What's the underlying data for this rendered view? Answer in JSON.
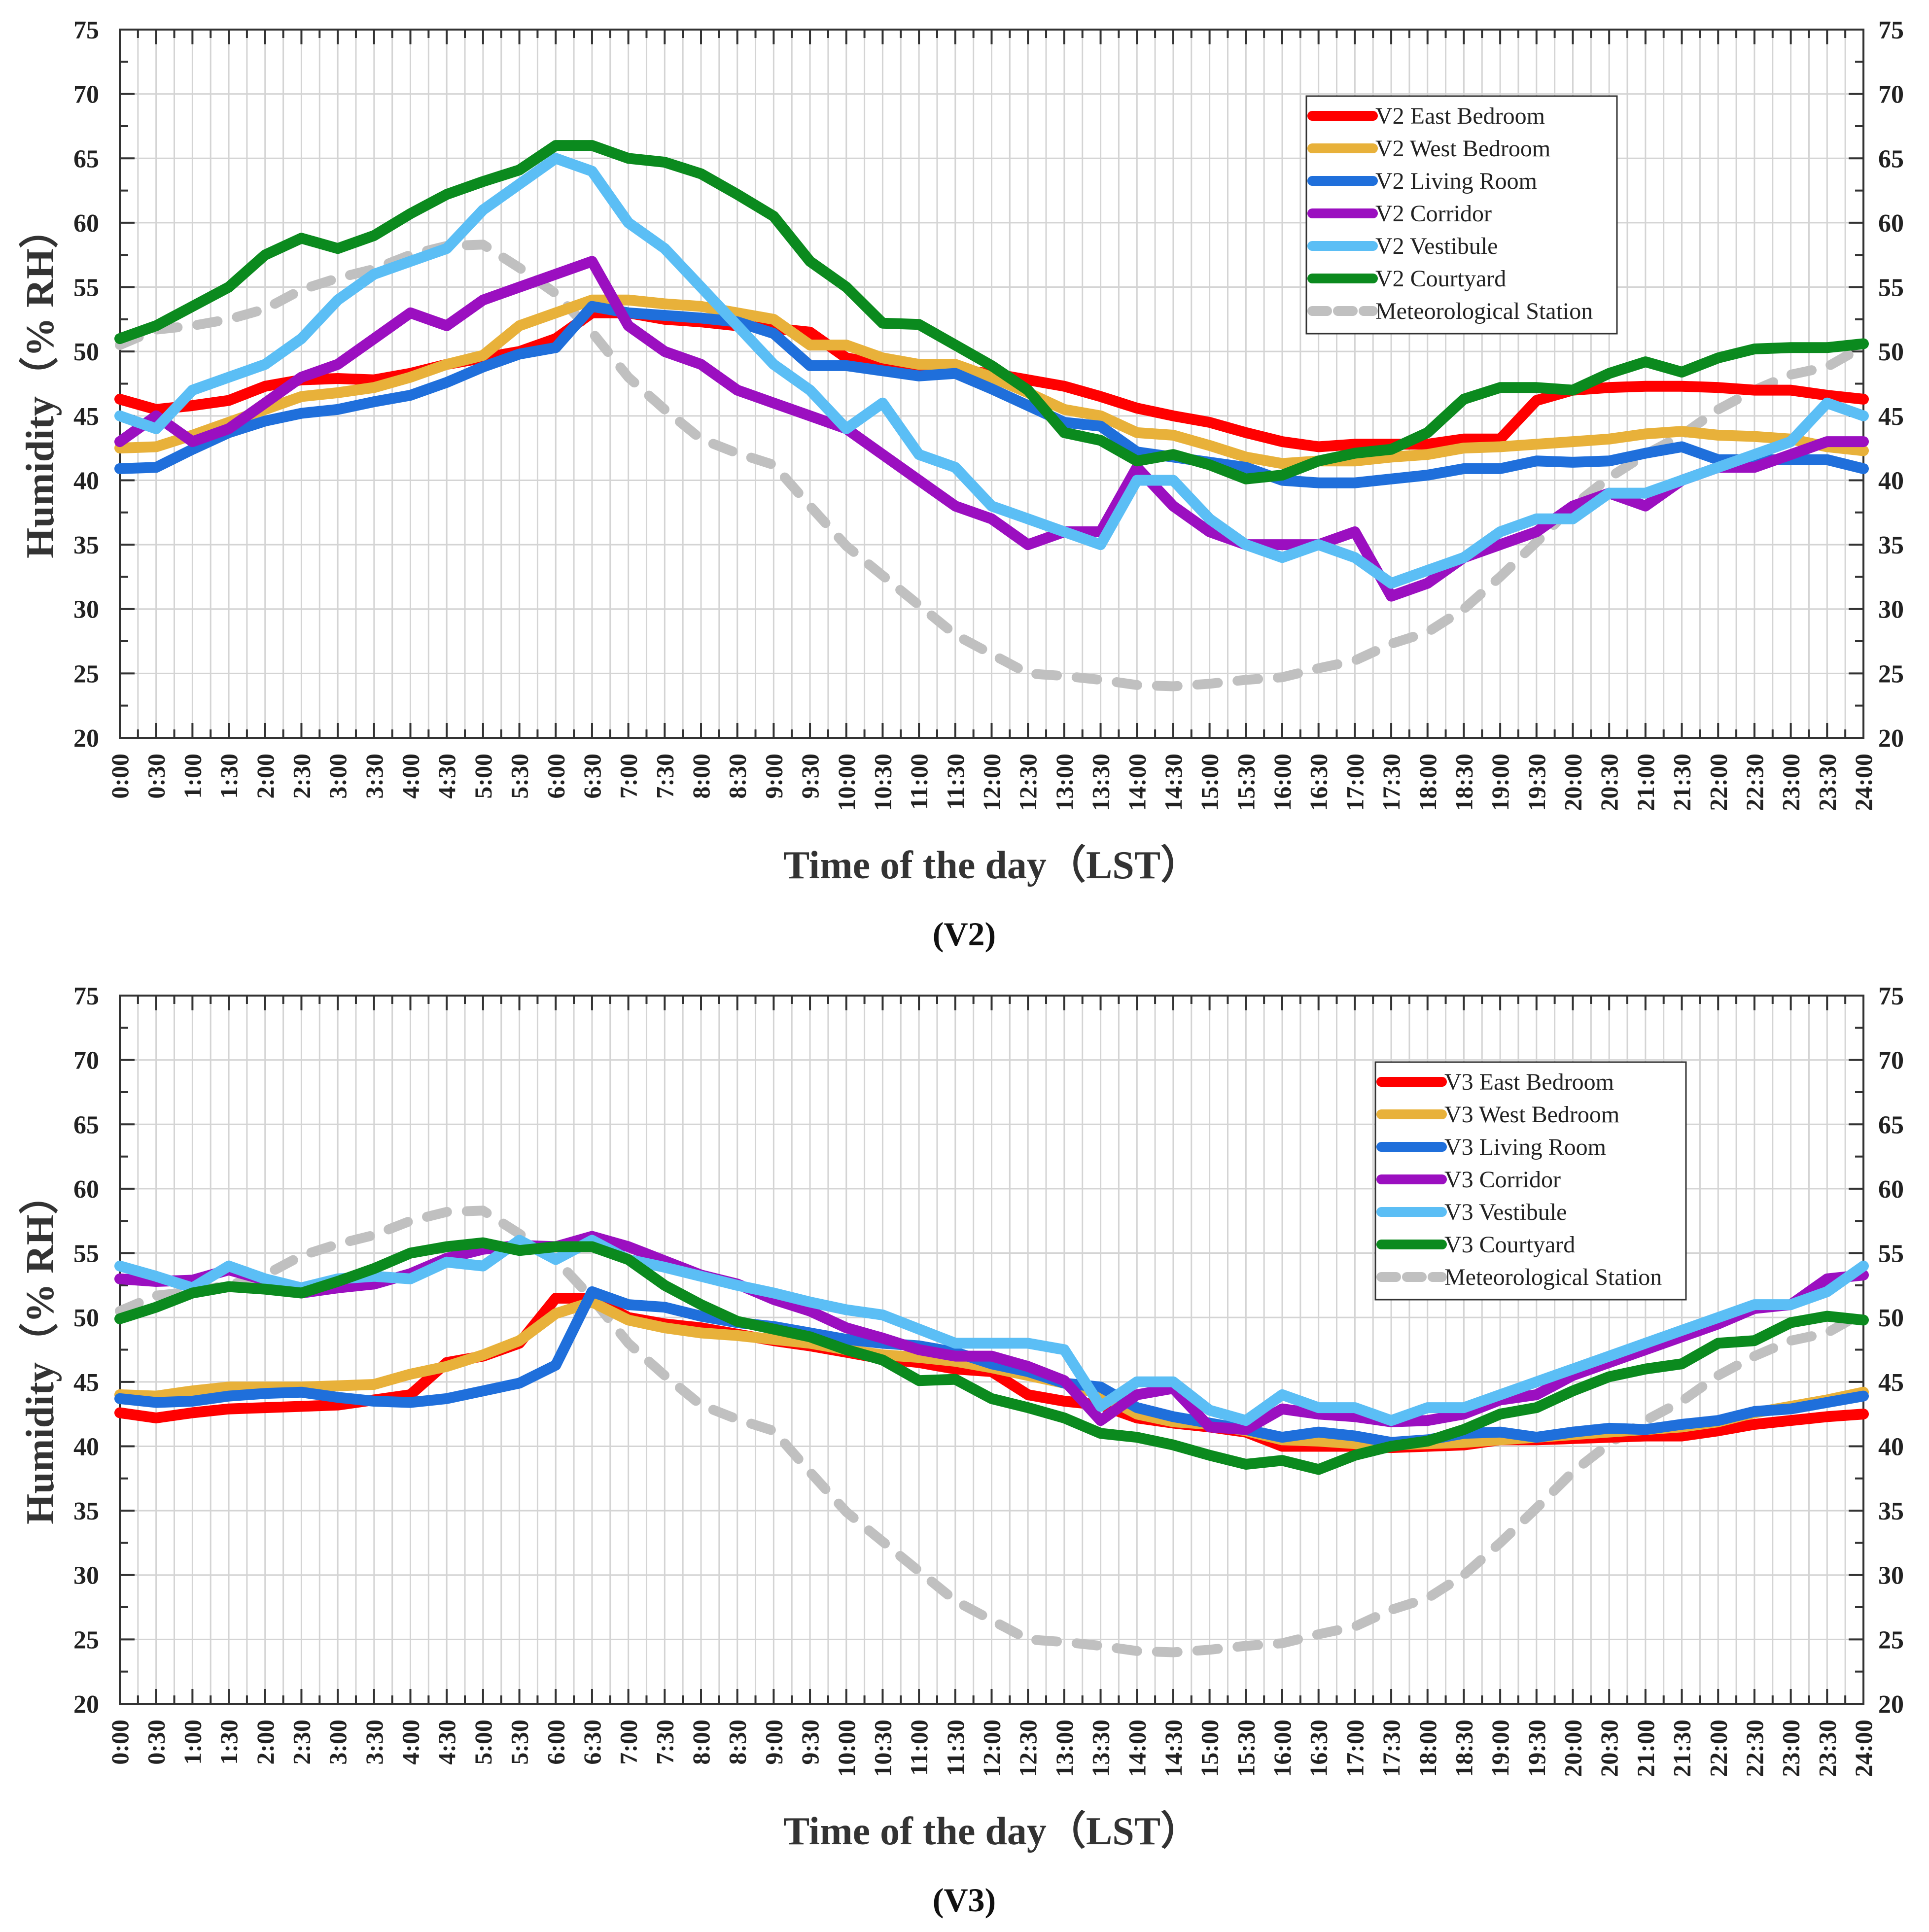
{
  "chart_data": [
    {
      "type": "line",
      "panel_label": "(V2)",
      "xlabel": "Time of the day（LST）",
      "ylabel": "Humidity（% RH）",
      "ylim": [
        20,
        75
      ],
      "yticks": [
        20,
        25,
        30,
        35,
        40,
        45,
        50,
        55,
        60,
        65,
        70,
        75
      ],
      "grid": true,
      "legend_position": "top-right",
      "x": [
        "0:00",
        "0:30",
        "1:00",
        "1:30",
        "2:00",
        "2:30",
        "3:00",
        "3:30",
        "4:00",
        "4:30",
        "5:00",
        "5:30",
        "6:00",
        "6:30",
        "7:00",
        "7:30",
        "8:00",
        "8:30",
        "9:00",
        "9:30",
        "10:00",
        "10:30",
        "11:00",
        "11:30",
        "12:00",
        "12:30",
        "13:00",
        "13:30",
        "14:00",
        "14:30",
        "15:00",
        "15:30",
        "16:00",
        "16:30",
        "17:00",
        "17:30",
        "18:00",
        "18:30",
        "19:00",
        "19:30",
        "20:00",
        "20:30",
        "21:00",
        "21:30",
        "22:00",
        "22:30",
        "23:00",
        "23:30",
        "24:00"
      ],
      "series": [
        {
          "name": "V2 East Bedroom",
          "color": "#ff0000",
          "dashed": false,
          "values": [
            46.3,
            45.5,
            45.8,
            46.2,
            47.3,
            47.8,
            47.9,
            47.8,
            48.3,
            49,
            49.5,
            50,
            51,
            53,
            53,
            52.5,
            52.3,
            52,
            51.8,
            51.5,
            49.5,
            49,
            48.7,
            48.5,
            48.3,
            47.8,
            47.3,
            46.5,
            45.6,
            45,
            44.5,
            43.7,
            43,
            42.6,
            42.8,
            42.8,
            42.8,
            43.2,
            43.2,
            46.2,
            47,
            47.2,
            47.3,
            47.3,
            47.2,
            47,
            47,
            46.6,
            46.3
          ]
        },
        {
          "name": "V2 West Bedroom",
          "color": "#e8b13a",
          "dashed": false,
          "values": [
            42.5,
            42.6,
            43.5,
            44.5,
            45.5,
            46.5,
            46.8,
            47.2,
            48,
            49,
            49.7,
            52,
            53,
            54,
            54,
            53.7,
            53.5,
            53,
            52.5,
            50.5,
            50.5,
            49.5,
            49,
            49,
            48,
            46.8,
            45.5,
            45,
            43.7,
            43.5,
            42.7,
            41.8,
            41.3,
            41.5,
            41.5,
            41.8,
            42,
            42.5,
            42.6,
            42.8,
            43,
            43.2,
            43.6,
            43.8,
            43.5,
            43.4,
            43.2,
            42.6,
            42.3
          ]
        },
        {
          "name": "V2 Living Room",
          "color": "#1f6fdb",
          "dashed": false,
          "values": [
            40.9,
            41,
            42.4,
            43.7,
            44.6,
            45.2,
            45.5,
            46.1,
            46.6,
            47.6,
            48.8,
            49.8,
            50.3,
            53.5,
            53,
            52.8,
            52.6,
            52.3,
            51.4,
            48.9,
            48.9,
            48.5,
            48.1,
            48.3,
            47.1,
            45.8,
            44.5,
            44.2,
            42.2,
            41.8,
            41.4,
            41,
            40,
            39.8,
            39.8,
            40.1,
            40.4,
            40.9,
            40.9,
            41.5,
            41.4,
            41.5,
            42.1,
            42.6,
            41.6,
            41.6,
            41.6,
            41.6,
            40.9
          ]
        },
        {
          "name": "V2  Corridor",
          "color": "#9b0fc0",
          "dashed": false,
          "values": [
            43,
            45,
            43,
            44,
            46,
            48,
            49,
            51,
            53,
            52,
            54,
            55,
            56,
            57,
            52,
            50,
            49,
            47,
            46,
            45,
            44,
            42,
            40,
            38,
            37,
            35,
            36,
            36,
            41,
            38,
            36,
            35,
            35,
            35,
            36,
            31,
            32,
            34,
            35,
            36,
            38,
            39,
            38,
            40,
            41,
            41,
            42,
            43,
            43
          ]
        },
        {
          "name": "V2 Vestibule",
          "color": "#5bbef5",
          "dashed": false,
          "values": [
            45,
            44,
            47,
            48,
            49,
            51,
            54,
            56,
            57,
            58,
            61,
            63,
            65,
            64,
            60,
            58,
            55,
            52,
            49,
            47,
            44,
            46,
            42,
            41,
            38,
            37,
            36,
            35,
            40,
            40,
            37,
            35,
            34,
            35,
            34,
            32,
            33,
            34,
            36,
            37,
            37,
            39,
            39,
            40,
            41,
            42,
            43,
            46,
            45
          ]
        },
        {
          "name": "V2 Courtyard",
          "color": "#0b8a1e",
          "dashed": false,
          "values": [
            51,
            52,
            53.5,
            55,
            57.5,
            58.8,
            58,
            59,
            60.7,
            62.2,
            63.2,
            64.1,
            66,
            66,
            65,
            64.7,
            63.8,
            62.2,
            60.5,
            57,
            55,
            52.2,
            52.1,
            50.5,
            48.9,
            47,
            43.7,
            43.1,
            41.5,
            42,
            41.2,
            40.1,
            40.4,
            41.5,
            42.1,
            42.4,
            43.7,
            46.3,
            47.2,
            47.2,
            47,
            48.3,
            49.2,
            48.4,
            49.5,
            50.2,
            50.3,
            50.3,
            50.6
          ]
        },
        {
          "name": "Meteorological Station",
          "color": "#c0c0c0",
          "dashed": true,
          "values": [
            50.5,
            51.7,
            52,
            52.5,
            53.3,
            54.8,
            55.7,
            56.4,
            57.5,
            58.2,
            58.3,
            56.5,
            54.5,
            51.5,
            48,
            45.5,
            43.2,
            42.1,
            41.2,
            38,
            34.9,
            32.6,
            30.3,
            28,
            26.5,
            25,
            24.8,
            24.5,
            24.1,
            24,
            24.2,
            24.5,
            24.7,
            25.4,
            26,
            27.3,
            28.2,
            30,
            32.5,
            35.2,
            38,
            40.2,
            42,
            43.5,
            45.5,
            47,
            48.2,
            48.8,
            50.4
          ]
        }
      ]
    },
    {
      "type": "line",
      "panel_label": "(V3)",
      "xlabel": "Time of the day（LST）",
      "ylabel": "Humidity（% RH）",
      "ylim": [
        20,
        75
      ],
      "yticks": [
        20,
        25,
        30,
        35,
        40,
        45,
        50,
        55,
        60,
        65,
        70,
        75
      ],
      "grid": true,
      "legend_position": "top-right",
      "x": [
        "0:00",
        "0:30",
        "1:00",
        "1:30",
        "2:00",
        "2:30",
        "3:00",
        "3:30",
        "4:00",
        "4:30",
        "5:00",
        "5:30",
        "6:00",
        "6:30",
        "7:00",
        "7:30",
        "8:00",
        "8:30",
        "9:00",
        "9:30",
        "10:00",
        "10:30",
        "11:00",
        "11:30",
        "12:00",
        "12:30",
        "13:00",
        "13:30",
        "14:00",
        "14:30",
        "15:00",
        "15:30",
        "16:00",
        "16:30",
        "17:00",
        "17:30",
        "18:00",
        "18:30",
        "19:00",
        "19:30",
        "20:00",
        "20:30",
        "21:00",
        "21:30",
        "22:00",
        "22:30",
        "23:00",
        "23:30",
        "24:00"
      ],
      "series": [
        {
          "name": "V3 East Bedroom",
          "color": "#ff0000",
          "dashed": false,
          "values": [
            42.6,
            42.2,
            42.6,
            42.9,
            43,
            43.1,
            43.2,
            43.6,
            44,
            46.5,
            47,
            48,
            51.5,
            51.5,
            50,
            49.5,
            49.2,
            48.7,
            48.2,
            47.8,
            47.3,
            46.8,
            46.5,
            46,
            45.8,
            44,
            43.5,
            43.2,
            42.2,
            41.8,
            41.5,
            41.1,
            40,
            40,
            40,
            39.9,
            40,
            40.1,
            40.5,
            40.5,
            40.6,
            40.7,
            40.8,
            40.8,
            41.2,
            41.7,
            42,
            42.3,
            42.5
          ]
        },
        {
          "name": "V3 West Bedroom",
          "color": "#e8b13a",
          "dashed": false,
          "values": [
            44,
            43.9,
            44.3,
            44.6,
            44.6,
            44.6,
            44.7,
            44.8,
            45.6,
            46.2,
            47.1,
            48.2,
            50.3,
            51.2,
            49.8,
            49.2,
            48.8,
            48.6,
            48.3,
            48,
            47.5,
            47.1,
            46.9,
            46.6,
            46.1,
            45.5,
            44.9,
            44,
            42.5,
            41.9,
            41.7,
            41.2,
            40.5,
            40.4,
            40.2,
            40.1,
            40.2,
            40.3,
            40.5,
            40.7,
            40.9,
            41.1,
            41.3,
            41.5,
            41.9,
            42.6,
            43.1,
            43.6,
            44.2
          ]
        },
        {
          "name": "V3 Living Room",
          "color": "#1f6fdb",
          "dashed": false,
          "values": [
            43.7,
            43.4,
            43.5,
            43.9,
            44.1,
            44.2,
            43.8,
            43.5,
            43.4,
            43.7,
            44.3,
            44.9,
            46.3,
            52,
            51,
            50.8,
            50.1,
            49.6,
            49.3,
            48.8,
            48.3,
            48,
            47.8,
            47.3,
            46.4,
            45.8,
            44.9,
            44.6,
            43,
            42.3,
            41.8,
            41.3,
            40.7,
            41.1,
            40.8,
            40.3,
            40.5,
            41,
            41.1,
            40.7,
            41.1,
            41.4,
            41.3,
            41.7,
            42,
            42.7,
            42.9,
            43.4,
            43.9
          ]
        },
        {
          "name": "V3 Corridor",
          "color": "#9b0fc0",
          "dashed": false,
          "values": [
            53,
            52.8,
            52.9,
            53.7,
            52.9,
            51.9,
            52.3,
            52.6,
            53.4,
            54.6,
            55.3,
            55.6,
            55.5,
            56.3,
            55.5,
            54.4,
            53.3,
            52.6,
            51.4,
            50.5,
            49.2,
            48.4,
            47.5,
            47,
            47,
            46.2,
            45.1,
            42,
            44,
            44.5,
            41.5,
            41.3,
            42.9,
            42.5,
            42.3,
            41.9,
            42,
            42.5,
            43.6,
            44,
            45.5,
            46.5,
            47.5,
            48.5,
            49.5,
            50.7,
            51,
            53,
            53.3
          ]
        },
        {
          "name": "V3 Vestibule",
          "color": "#5bbef5",
          "dashed": false,
          "values": [
            54,
            53.2,
            52.3,
            54,
            53,
            52.3,
            53,
            53.2,
            53,
            54.3,
            54,
            56,
            54.5,
            56,
            54.5,
            53.9,
            53.2,
            52.5,
            51.9,
            51.2,
            50.6,
            50.2,
            49.1,
            48,
            48,
            48,
            47.5,
            43.1,
            45,
            45,
            42.8,
            42,
            44,
            43,
            43,
            42,
            43,
            43,
            44,
            45,
            46,
            47,
            48,
            49,
            50,
            51,
            51,
            52,
            54
          ]
        },
        {
          "name": "V3 Courtyard",
          "color": "#0b8a1e",
          "dashed": false,
          "values": [
            49.9,
            50.8,
            51.9,
            52.4,
            52.2,
            51.9,
            52.8,
            53.8,
            55,
            55.5,
            55.8,
            55.2,
            55.5,
            55.5,
            54.5,
            52.5,
            51,
            49.7,
            49.1,
            48.5,
            47.5,
            46.7,
            45.1,
            45.2,
            43.7,
            43,
            42.2,
            41,
            40.7,
            40.1,
            39.3,
            38.6,
            38.9,
            38.2,
            39.3,
            40,
            40.4,
            41.3,
            42.5,
            43,
            44.3,
            45.4,
            46,
            46.4,
            48,
            48.2,
            49.6,
            50.1,
            49.8
          ]
        },
        {
          "name": "Meteorological Station",
          "color": "#c0c0c0",
          "dashed": true,
          "values": [
            50.5,
            51.7,
            52,
            52.5,
            53.3,
            54.8,
            55.7,
            56.4,
            57.5,
            58.2,
            58.3,
            56.5,
            54.5,
            51.5,
            48,
            45.5,
            43.2,
            42.1,
            41.2,
            38,
            34.9,
            32.6,
            30.3,
            28,
            26.5,
            25,
            24.8,
            24.5,
            24.1,
            24,
            24.2,
            24.5,
            24.7,
            25.4,
            26,
            27.3,
            28.2,
            30,
            32.5,
            35.2,
            38,
            40.2,
            42,
            43.5,
            45.5,
            47,
            48.2,
            48.8,
            50.4
          ]
        }
      ]
    }
  ]
}
